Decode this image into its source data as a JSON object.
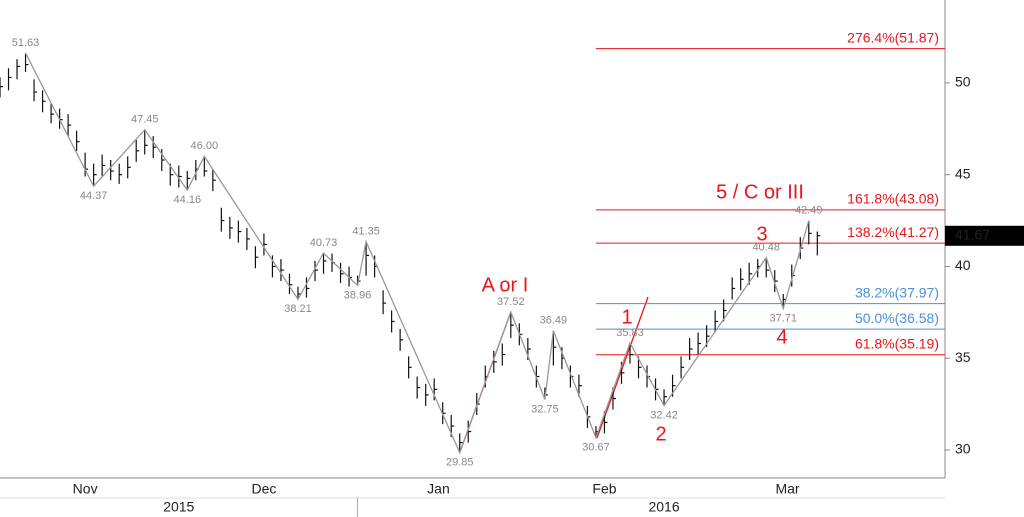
{
  "chart_data": {
    "type": "ohlc",
    "xlim": [
      0,
      111
    ],
    "ylim": [
      28.47,
      54.52
    ],
    "yticks": [
      30,
      35,
      40,
      45,
      50
    ],
    "xticks": [
      {
        "value": 10,
        "label": "Nov"
      },
      {
        "value": 31,
        "label": "Dec"
      },
      {
        "value": 51.5,
        "label": "Jan"
      },
      {
        "value": 71,
        "label": "Feb"
      },
      {
        "value": 92.5,
        "label": "Mar"
      }
    ],
    "year_labels": [
      {
        "value": 21,
        "label": "2015"
      },
      {
        "value": 78,
        "label": "2016"
      }
    ],
    "year_divider": 42,
    "bar_color": "#111111",
    "bars": [
      [
        50.3,
        49.2,
        49.8
      ],
      [
        50.8,
        49.6,
        50.3
      ],
      [
        51.3,
        50.2,
        50.9
      ],
      [
        51.63,
        50.6,
        51.0
      ],
      [
        50.2,
        49.0,
        49.5
      ],
      [
        49.6,
        48.4,
        49.0
      ],
      [
        48.9,
        47.8,
        48.3
      ],
      [
        48.6,
        47.5,
        48.0
      ],
      [
        48.3,
        47.1,
        47.7
      ],
      [
        47.4,
        46.3,
        46.8
      ],
      [
        46.2,
        44.9,
        45.3
      ],
      [
        45.6,
        44.37,
        45.0
      ],
      [
        46.1,
        44.9,
        45.5
      ],
      [
        45.8,
        44.7,
        45.2
      ],
      [
        45.6,
        44.5,
        45.0
      ],
      [
        46.0,
        44.8,
        45.4
      ],
      [
        46.9,
        45.7,
        46.3
      ],
      [
        47.45,
        46.1,
        46.6
      ],
      [
        47.1,
        45.9,
        46.5
      ],
      [
        46.4,
        45.2,
        45.8
      ],
      [
        45.6,
        44.4,
        45.0
      ],
      [
        45.5,
        44.3,
        44.9
      ],
      [
        45.2,
        44.16,
        44.8
      ],
      [
        45.8,
        44.7,
        45.3
      ],
      [
        46.0,
        44.9,
        45.2
      ],
      [
        45.3,
        44.1,
        44.7
      ],
      [
        43.2,
        41.9,
        42.5
      ],
      [
        42.7,
        41.5,
        42.1
      ],
      [
        42.5,
        41.3,
        41.9
      ],
      [
        42.1,
        40.9,
        41.5
      ],
      [
        41.1,
        39.9,
        40.5
      ],
      [
        41.8,
        40.6,
        41.2
      ],
      [
        40.6,
        39.4,
        40.0
      ],
      [
        40.4,
        39.2,
        39.8
      ],
      [
        39.6,
        38.5,
        39.0
      ],
      [
        38.9,
        38.21,
        38.5
      ],
      [
        39.4,
        38.3,
        38.8
      ],
      [
        40.3,
        39.2,
        39.8
      ],
      [
        40.73,
        39.6,
        40.3
      ],
      [
        40.7,
        39.7,
        40.2
      ],
      [
        40.2,
        39.1,
        39.6
      ],
      [
        40.0,
        38.9,
        39.4
      ],
      [
        39.5,
        38.96,
        39.2
      ],
      [
        41.35,
        39.5,
        40.6
      ],
      [
        40.6,
        39.4,
        40.0
      ],
      [
        38.7,
        37.4,
        38.0
      ],
      [
        37.6,
        36.4,
        37.0
      ],
      [
        36.6,
        35.4,
        36.0
      ],
      [
        35.1,
        33.9,
        34.5
      ],
      [
        34.0,
        32.8,
        33.4
      ],
      [
        33.6,
        32.4,
        33.0
      ],
      [
        33.9,
        32.7,
        33.3
      ],
      [
        32.6,
        31.4,
        32.0
      ],
      [
        31.9,
        30.7,
        31.3
      ],
      [
        30.9,
        29.85,
        30.4
      ],
      [
        31.6,
        30.4,
        31.0
      ],
      [
        33.1,
        31.9,
        32.5
      ],
      [
        34.6,
        33.4,
        34.0
      ],
      [
        35.4,
        34.2,
        34.8
      ],
      [
        35.8,
        34.6,
        35.2
      ],
      [
        37.52,
        36.1,
        36.8
      ],
      [
        36.9,
        35.7,
        36.3
      ],
      [
        36.1,
        34.9,
        35.5
      ],
      [
        34.6,
        33.4,
        34.0
      ],
      [
        33.4,
        32.75,
        33.0
      ],
      [
        36.49,
        34.6,
        35.6
      ],
      [
        35.6,
        34.4,
        35.0
      ],
      [
        34.6,
        33.4,
        34.0
      ],
      [
        34.1,
        32.9,
        33.5
      ],
      [
        32.4,
        31.2,
        31.8
      ],
      [
        31.3,
        30.67,
        31.0
      ],
      [
        32.1,
        30.9,
        31.5
      ],
      [
        33.4,
        32.2,
        32.8
      ],
      [
        34.8,
        33.6,
        34.2
      ],
      [
        35.83,
        34.7,
        35.2
      ],
      [
        35.1,
        33.9,
        34.5
      ],
      [
        34.6,
        33.4,
        34.0
      ],
      [
        33.9,
        32.7,
        33.3
      ],
      [
        33.3,
        32.42,
        32.9
      ],
      [
        34.1,
        32.9,
        33.5
      ],
      [
        35.1,
        33.9,
        34.5
      ],
      [
        36.1,
        34.9,
        35.5
      ],
      [
        36.4,
        35.2,
        35.8
      ],
      [
        36.8,
        35.6,
        36.2
      ],
      [
        37.6,
        36.4,
        37.0
      ],
      [
        38.2,
        37.0,
        37.6
      ],
      [
        39.4,
        38.2,
        38.8
      ],
      [
        39.9,
        38.7,
        39.3
      ],
      [
        40.2,
        39.0,
        39.6
      ],
      [
        40.4,
        39.4,
        40.0
      ],
      [
        40.48,
        39.4,
        39.8
      ],
      [
        39.8,
        38.6,
        39.2
      ],
      [
        38.5,
        37.71,
        38.2
      ],
      [
        40.1,
        38.9,
        39.5
      ],
      [
        41.6,
        40.4,
        41.0
      ],
      [
        42.49,
        41.2,
        41.8
      ],
      [
        41.9,
        40.6,
        41.67
      ]
    ],
    "swings": {
      "color": "#999999",
      "x": [
        3,
        11,
        17,
        22,
        24,
        35,
        38,
        42,
        43,
        54,
        60,
        64,
        65,
        70,
        74,
        78,
        90,
        92,
        95
      ],
      "values": [
        51.63,
        44.37,
        47.45,
        44.16,
        46.0,
        38.21,
        40.73,
        38.96,
        41.35,
        29.85,
        37.52,
        32.75,
        36.49,
        30.67,
        35.83,
        32.42,
        40.48,
        37.71,
        42.49
      ],
      "value_labels": [
        "51.63",
        "44.37",
        "47.45",
        "44.16",
        "46.00",
        "38.21",
        "40.73",
        "38.96",
        "41.35",
        "29.85",
        "37.52",
        "32.75",
        "36.49",
        "30.67",
        "35.83",
        "32.42",
        "40.48",
        "37.71",
        "42.49"
      ]
    },
    "fib_start": 70,
    "fib_levels": [
      {
        "value": 51.87,
        "label": "276.4%(51.87)",
        "color": "#e8161b"
      },
      {
        "value": 43.08,
        "label": "161.8%(43.08)",
        "color": "#e8161b"
      },
      {
        "value": 41.27,
        "label": "138.2%(41.27)",
        "color": "#e8161b"
      },
      {
        "value": 37.97,
        "label": "38.2%(37.97)",
        "color": "#4a90d9"
      },
      {
        "value": 36.58,
        "label": "50.0%(36.58)",
        "color": "#4a90d9"
      },
      {
        "value": 35.19,
        "label": "61.8%(35.19)",
        "color": "#e8161b"
      }
    ],
    "last_price": 41.67,
    "annotations": [
      "A or I",
      "1",
      "2",
      "3",
      "4",
      "5 / C or III"
    ]
  }
}
